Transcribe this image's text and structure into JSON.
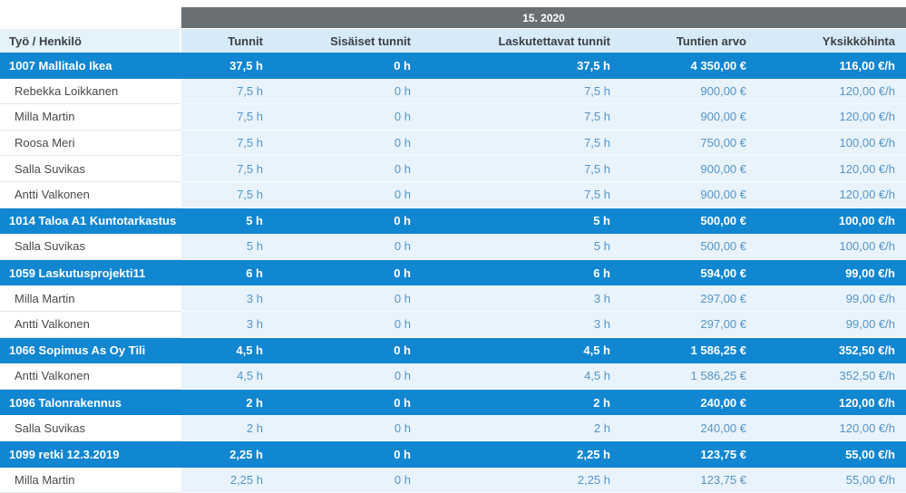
{
  "period_header": "15. 2020",
  "columns": [
    "Työ / Henkilö",
    "Tunnit",
    "Sisäiset tunnit",
    "Laskutettavat tunnit",
    "Tuntien arvo",
    "Yksikköhinta"
  ],
  "groups": [
    {
      "project": "1007 Mallitalo Ikea",
      "totals": [
        "37,5 h",
        "0 h",
        "37,5 h",
        "4 350,00 €",
        "116,00 €/h"
      ],
      "members": [
        {
          "name": "Rebekka Loikkanen",
          "values": [
            "7,5 h",
            "0 h",
            "7,5 h",
            "900,00 €",
            "120,00 €/h"
          ]
        },
        {
          "name": "Milla Martin",
          "values": [
            "7,5 h",
            "0 h",
            "7,5 h",
            "900,00 €",
            "120,00 €/h"
          ]
        },
        {
          "name": "Roosa Meri",
          "values": [
            "7,5 h",
            "0 h",
            "7,5 h",
            "750,00 €",
            "100,00 €/h"
          ]
        },
        {
          "name": "Salla Suvikas",
          "values": [
            "7,5 h",
            "0 h",
            "7,5 h",
            "900,00 €",
            "120,00 €/h"
          ]
        },
        {
          "name": "Antti Valkonen",
          "values": [
            "7,5 h",
            "0 h",
            "7,5 h",
            "900,00 €",
            "120,00 €/h"
          ]
        }
      ]
    },
    {
      "project": "1014 Taloa A1 Kuntotarkastus",
      "totals": [
        "5 h",
        "0 h",
        "5 h",
        "500,00 €",
        "100,00 €/h"
      ],
      "members": [
        {
          "name": "Salla Suvikas",
          "values": [
            "5 h",
            "0 h",
            "5 h",
            "500,00 €",
            "100,00 €/h"
          ]
        }
      ]
    },
    {
      "project": "1059 Laskutusprojekti11",
      "totals": [
        "6 h",
        "0 h",
        "6 h",
        "594,00 €",
        "99,00 €/h"
      ],
      "members": [
        {
          "name": "Milla Martin",
          "values": [
            "3 h",
            "0 h",
            "3 h",
            "297,00 €",
            "99,00 €/h"
          ]
        },
        {
          "name": "Antti Valkonen",
          "values": [
            "3 h",
            "0 h",
            "3 h",
            "297,00 €",
            "99,00 €/h"
          ]
        }
      ]
    },
    {
      "project": "1066 Sopimus As Oy Tili",
      "totals": [
        "4,5 h",
        "0 h",
        "4,5 h",
        "1 586,25 €",
        "352,50 €/h"
      ],
      "members": [
        {
          "name": "Antti Valkonen",
          "values": [
            "4,5 h",
            "0 h",
            "4,5 h",
            "1 586,25 €",
            "352,50 €/h"
          ]
        }
      ]
    },
    {
      "project": "1096 Talonrakennus",
      "totals": [
        "2 h",
        "0 h",
        "2 h",
        "240,00 €",
        "120,00 €/h"
      ],
      "members": [
        {
          "name": "Salla Suvikas",
          "values": [
            "2 h",
            "0 h",
            "2 h",
            "240,00 €",
            "120,00 €/h"
          ]
        }
      ]
    },
    {
      "project": "1099 retki 12.3.2019",
      "totals": [
        "2,25 h",
        "0 h",
        "2,25 h",
        "123,75 €",
        "55,00 €/h"
      ],
      "members": [
        {
          "name": "Milla Martin",
          "values": [
            "2,25 h",
            "0 h",
            "2,25 h",
            "123,75 €",
            "55,00 €/h"
          ]
        }
      ]
    }
  ],
  "colors": {
    "accent_blue": "#1186d1",
    "bar_gray": "#6a6f74",
    "header_tint": "#d7eaf8",
    "header_tint_first": "#e4f2fc",
    "row_tint": "#e9f3fb",
    "value_text_blue": "#5695c8"
  }
}
